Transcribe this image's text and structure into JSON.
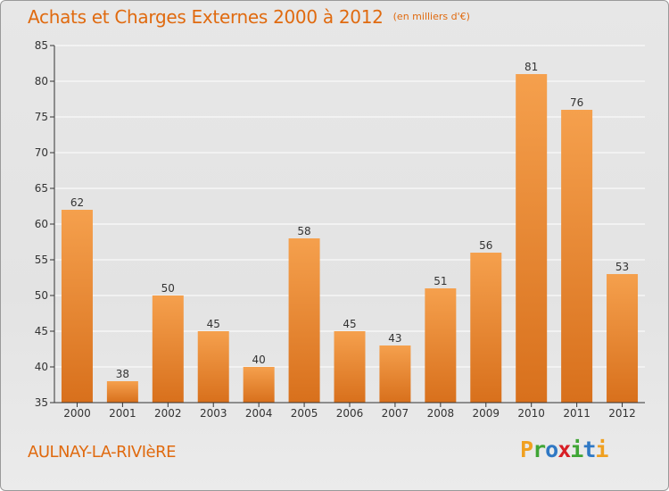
{
  "header": {
    "title": "Achats et Charges Externes 2000 à 2012",
    "unit": "(en milliers d'€)"
  },
  "footer": {
    "commune": "AULNAY-LA-RIVIèRE",
    "logo_letters": [
      "P",
      "r",
      "o",
      "x",
      "i",
      "t",
      "i"
    ],
    "logo_colors": [
      "#f0a020",
      "#3fa535",
      "#2f78c4",
      "#d81f26",
      "#3fa535",
      "#2f78c4",
      "#f0a020"
    ]
  },
  "colors": {
    "bar_top": "#f5a04d",
    "bar_bottom": "#d8701c",
    "title": "#e06a0f",
    "grid": "#ffffff",
    "axis": "#333333"
  },
  "chart_data": {
    "type": "bar",
    "title": "Achats et Charges Externes 2000 à 2012",
    "subtitle": "(en milliers d'€)",
    "categories": [
      "2000",
      "2001",
      "2002",
      "2003",
      "2004",
      "2005",
      "2006",
      "2007",
      "2008",
      "2009",
      "2010",
      "2011",
      "2012"
    ],
    "values": [
      62,
      38,
      50,
      45,
      40,
      58,
      45,
      43,
      51,
      56,
      81,
      76,
      53
    ],
    "ylim": [
      35,
      85
    ],
    "yticks": [
      35,
      40,
      45,
      50,
      55,
      60,
      65,
      70,
      75,
      80,
      85
    ],
    "grid": true,
    "data_labels": true
  }
}
